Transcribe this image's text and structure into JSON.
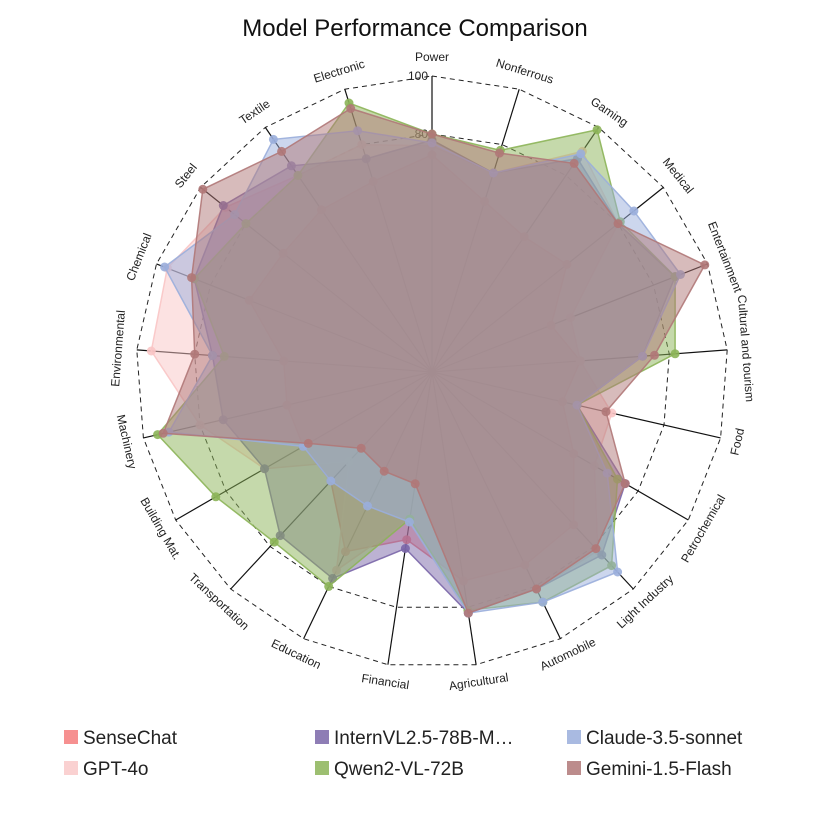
{
  "chart_data": {
    "type": "radar",
    "title": "Model Performance Comparison",
    "categories": [
      "Power",
      "Nonferrous",
      "Gaming",
      "Medical",
      "Entertainment",
      "Cultural and tourism",
      "Food",
      "Petrochemical",
      "Light Industry",
      "Automobile",
      "Agricultural",
      "Financial",
      "Education",
      "Transportation",
      "Building Mat.",
      "Machinery",
      "Environmental",
      "Chemical",
      "Steel",
      "Textile",
      "Electronic"
    ],
    "r_ticks": [
      80,
      100
    ],
    "grid": true,
    "legend_position": "bottom",
    "series": [
      {
        "name": "SenseChat",
        "color": "#f47c7c",
        "values": [
          73,
          60,
          55,
          58,
          43,
          50,
          45,
          55,
          70,
          72,
          71,
          57,
          67,
          50,
          50,
          50,
          50,
          66,
          64,
          66,
          67
        ]
      },
      {
        "name": "GPT-4o",
        "color": "#f9c5c5",
        "values": [
          76,
          70,
          90,
          80,
          50,
          50,
          62,
          63,
          82,
          81,
          82,
          50,
          74,
          41,
          65,
          80,
          95,
          96,
          89,
          80,
          80
        ]
      },
      {
        "name": "InternVL2.5-78B-M…",
        "color": "#7a66a8",
        "values": [
          78,
          70,
          87,
          80,
          88,
          71,
          50,
          75,
          84,
          81,
          82,
          60,
          77,
          75,
          65,
          72,
          74,
          86,
          90,
          84,
          75
        ]
      },
      {
        "name": "Qwen2-VL-72B",
        "color": "#8cb458",
        "values": [
          80,
          78,
          99,
          81,
          88,
          82,
          50,
          72,
          89,
          86,
          81,
          50,
          80,
          78,
          84,
          95,
          70,
          86,
          80,
          80,
          95
        ]
      },
      {
        "name": "Claude-3.5-sonnet",
        "color": "#9aaedc",
        "values": [
          77,
          70,
          89,
          87,
          90,
          71,
          50,
          68,
          92,
          86,
          82,
          51,
          50,
          50,
          50,
          91,
          74,
          97,
          85,
          95,
          85
        ]
      },
      {
        "name": "Gemini-1.5-Flash",
        "color": "#b07878",
        "values": [
          80,
          77,
          85,
          80,
          99,
          75,
          60,
          75,
          81,
          81,
          82,
          38,
          37,
          35,
          48,
          93,
          80,
          87,
          99,
          90,
          93
        ]
      }
    ]
  }
}
